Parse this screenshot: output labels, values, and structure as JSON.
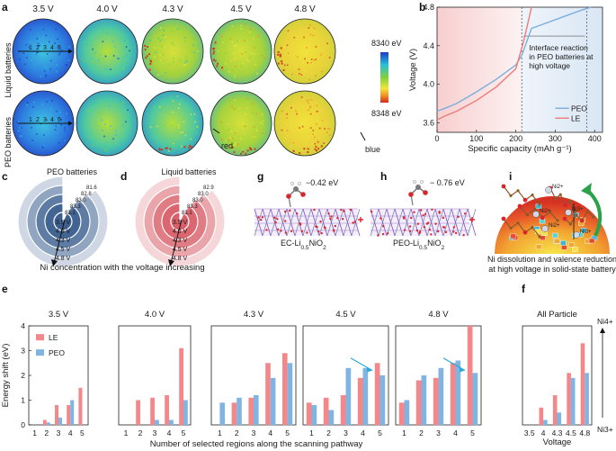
{
  "panel_labels": {
    "a": "a",
    "b": "b",
    "c": "c",
    "d": "d",
    "e": "e",
    "f": "f",
    "g": "g",
    "h": "h",
    "i": "i"
  },
  "panel_a": {
    "voltages": [
      "3.5 V",
      "4.0 V",
      "4.3 V",
      "4.5 V",
      "4.8 V"
    ],
    "row_labels": [
      "Liquid batteries",
      "PEO batteries"
    ],
    "scan_points": [
      "1",
      "2",
      "3",
      "4",
      "5"
    ],
    "colorbar_top": "8340 eV",
    "colorbar_bottom": "8348 eV",
    "colors": {
      "blue": "#1b3cc7",
      "cyan": "#28c0d6",
      "green": "#7fd13b",
      "yellow": "#f2e43a",
      "orange": "#f08a24",
      "red": "#d12a1f"
    },
    "annot_red": "red",
    "annot_blue": "blue"
  },
  "panel_c": {
    "title": "PEO batteries",
    "ring_labels": [
      "3.5 V",
      "4.0 V",
      "4.3 V",
      "4.5 V",
      "4.8 V"
    ],
    "gap_values": [
      "83.1",
      "83.3",
      "83.0",
      "82.8",
      "81.6"
    ],
    "base_color": "#3c5f8f"
  },
  "panel_d": {
    "title": "Liquid batteries",
    "ring_labels": [
      "3.5 V",
      "4.0 V",
      "4.3 V",
      "4.5 V",
      "4.8 V"
    ],
    "gap_values": [
      "83.1",
      "83.3",
      "83.0",
      "83.0",
      "82.9"
    ],
    "base_color": "#d9606a"
  },
  "cd_caption": "Ni concentration with the voltage increasing",
  "panel_g": {
    "energy": "−0.42 eV",
    "caption_main": "EC-Li",
    "sub1": "0.5",
    "mid": "NiO",
    "sub2": "2"
  },
  "panel_h": {
    "energy": "− 0.76 eV",
    "caption_main": "PEO-Li",
    "sub1": "0.5",
    "mid": "NiO",
    "sub2": "2"
  },
  "panel_i": {
    "caption_line1": "Ni dissolution and valence reduction",
    "caption_line2": "at high voltage in solid-state battery",
    "ni_labels": [
      "Ni2+",
      "Ni3+",
      "Ni2+",
      "Ni2+",
      "Ni3+"
    ]
  },
  "chart_data": [
    {
      "id": "b",
      "type": "line",
      "title": "",
      "xlabel": "Specific capacity (mAh g⁻¹)",
      "ylabel": "Voltage (V)",
      "xlim": [
        0,
        420
      ],
      "ylim": [
        3.5,
        4.8
      ],
      "xticks": [
        "0",
        "100",
        "200",
        "300",
        "400"
      ],
      "yticks": [
        "3.6",
        "4.0",
        "4.4",
        "4.8"
      ],
      "series": [
        {
          "name": "PEO",
          "color": "#7aaedc",
          "x": [
            0,
            20,
            50,
            100,
            150,
            200,
            215,
            240,
            280,
            320,
            360,
            390
          ],
          "y": [
            3.72,
            3.75,
            3.8,
            3.92,
            4.05,
            4.2,
            4.3,
            4.58,
            4.64,
            4.7,
            4.76,
            4.8
          ]
        },
        {
          "name": "LE",
          "color": "#f07a7a",
          "x": [
            0,
            20,
            50,
            100,
            150,
            200,
            220,
            240
          ],
          "y": [
            3.63,
            3.67,
            3.72,
            3.83,
            3.97,
            4.16,
            4.45,
            4.8
          ]
        }
      ],
      "vlines": [
        215,
        380
      ],
      "annotation": [
        "Interface  reaction",
        "in PEO batteries at",
        "high voltage"
      ]
    },
    {
      "id": "e",
      "type": "bar",
      "ylabel": "Energy shift (eV)",
      "xlabel": "Number of selected regions along the scanning pathway",
      "ylim": [
        0,
        4
      ],
      "yticks": [
        "0",
        "1",
        "2",
        "3",
        "4"
      ],
      "categories": [
        "1",
        "2",
        "3",
        "4",
        "5"
      ],
      "legend": [
        "LE",
        "PEO"
      ],
      "colors": {
        "LE": "#f4878a",
        "PEO": "#7fb4e3"
      },
      "subplots": [
        {
          "title": "3.5 V",
          "LE": [
            0,
            0.2,
            0.8,
            0.8,
            1.5
          ],
          "PEO": [
            0,
            0.1,
            0.3,
            1.0,
            0
          ]
        },
        {
          "title": "4.0 V",
          "LE": [
            0,
            1.0,
            1.1,
            1.2,
            3.1
          ],
          "PEO": [
            0,
            0,
            0.2,
            0.2,
            1.0
          ]
        },
        {
          "title": "4.3 V",
          "LE": [
            0,
            0.9,
            1.1,
            2.5,
            2.9
          ],
          "PEO": [
            0.9,
            1.1,
            1.2,
            1.9,
            2.5
          ]
        },
        {
          "title": "4.5 V",
          "LE": [
            0.9,
            1.1,
            1.2,
            1.9,
            2.5
          ],
          "PEO": [
            0.8,
            0.6,
            2.3,
            2.3,
            2.0
          ]
        },
        {
          "title": "4.8 V",
          "LE": [
            0.9,
            1.8,
            1.9,
            2.5,
            4.0
          ],
          "PEO": [
            1.0,
            2.0,
            2.3,
            2.6,
            2.1
          ]
        }
      ]
    },
    {
      "id": "f",
      "type": "bar",
      "title": "All Particle",
      "xlabel": "Voltage",
      "categories": [
        "3.5",
        "4",
        "4.3",
        "4.5",
        "4.8"
      ],
      "LE": [
        0,
        0.7,
        1.2,
        2.1,
        3.3
      ],
      "PEO": [
        0,
        0.2,
        0.5,
        1.9,
        2.1
      ],
      "ylim": [
        0,
        4
      ],
      "top_label": "Ni4+",
      "bottom_label": "Ni3+"
    }
  ]
}
